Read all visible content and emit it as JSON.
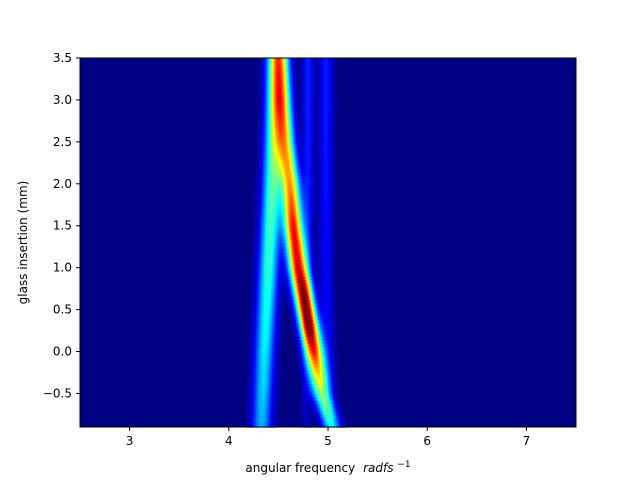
{
  "chart_data": {
    "type": "heatmap",
    "title": "",
    "xlabel": "angular frequency",
    "xlabel_math": "radfs",
    "xlabel_exponent": "−1",
    "ylabel": "glass insertion (mm)",
    "xlim": [
      2.5,
      7.5
    ],
    "ylim": [
      -0.9,
      3.5
    ],
    "xticks": [
      3,
      4,
      5,
      6,
      7
    ],
    "xtick_labels": [
      "3",
      "4",
      "5",
      "6",
      "7"
    ],
    "yticks": [
      -0.5,
      0.0,
      0.5,
      1.0,
      1.5,
      2.0,
      2.5,
      3.0,
      3.5
    ],
    "ytick_labels": [
      "−0.5",
      "0.0",
      "0.5",
      "1.0",
      "1.5",
      "2.0",
      "2.5",
      "3.0",
      "3.5"
    ],
    "colormap": "jet",
    "grid": false,
    "features": [
      {
        "description": "outer low-frequency band",
        "ridge": [
          [
            -0.9,
            4.33
          ],
          [
            0.0,
            4.36
          ],
          [
            1.0,
            4.4
          ],
          [
            2.0,
            4.44
          ],
          [
            3.0,
            4.47
          ],
          [
            3.5,
            4.48
          ]
        ],
        "peak_intensity": [
          [
            -0.9,
            0.3
          ],
          [
            0.0,
            0.36
          ],
          [
            1.0,
            0.42
          ],
          [
            2.0,
            0.46
          ],
          [
            3.0,
            0.48
          ],
          [
            3.5,
            0.48
          ]
        ],
        "width": 0.07
      },
      {
        "description": "main tilted band",
        "ridge": [
          [
            -0.9,
            5.05
          ],
          [
            -0.5,
            4.93
          ],
          [
            0.0,
            4.86
          ],
          [
            0.5,
            4.78
          ],
          [
            1.0,
            4.7
          ],
          [
            1.5,
            4.65
          ],
          [
            2.0,
            4.62
          ],
          [
            2.5,
            4.57
          ],
          [
            3.0,
            4.54
          ],
          [
            3.5,
            4.52
          ]
        ],
        "peak_intensity": [
          [
            -0.9,
            0.3
          ],
          [
            -0.5,
            0.48
          ],
          [
            0.0,
            0.85
          ],
          [
            0.3,
            1.0
          ],
          [
            0.7,
            0.98
          ],
          [
            1.0,
            0.92
          ],
          [
            1.5,
            0.88
          ],
          [
            2.0,
            0.72
          ],
          [
            2.5,
            0.62
          ],
          [
            3.0,
            0.55
          ],
          [
            3.5,
            0.4
          ]
        ],
        "width": 0.065
      },
      {
        "description": "faint high-frequency band",
        "ridge": [
          [
            -0.9,
            5.0
          ],
          [
            0.0,
            5.0
          ],
          [
            1.0,
            4.98
          ],
          [
            2.0,
            4.98
          ],
          [
            3.0,
            4.98
          ],
          [
            3.5,
            4.98
          ]
        ],
        "peak_intensity": [
          [
            -0.9,
            0.08
          ],
          [
            0.0,
            0.1
          ],
          [
            1.0,
            0.12
          ],
          [
            2.0,
            0.14
          ],
          [
            3.0,
            0.15
          ],
          [
            3.5,
            0.15
          ]
        ],
        "width": 0.05
      },
      {
        "description": "faint mid band",
        "ridge": [
          [
            -0.9,
            4.78
          ],
          [
            1.0,
            4.79
          ],
          [
            2.0,
            4.8
          ],
          [
            3.0,
            4.8
          ],
          [
            3.5,
            4.8
          ]
        ],
        "peak_intensity": [
          [
            -0.9,
            0.05
          ],
          [
            1.0,
            0.1
          ],
          [
            2.0,
            0.14
          ],
          [
            3.0,
            0.16
          ],
          [
            3.5,
            0.16
          ]
        ],
        "width": 0.04
      }
    ]
  }
}
